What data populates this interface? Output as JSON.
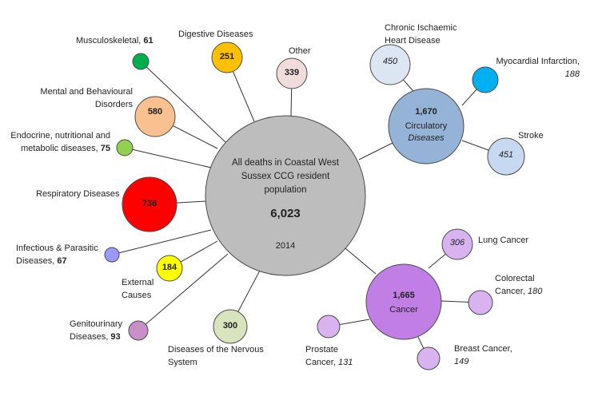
{
  "center": {
    "title": "All deaths in Coastal West Sussex CCG resident population",
    "total": "6,023",
    "year": "2014",
    "color": "#BDBDBD"
  },
  "circulatory": {
    "value": "1,670",
    "label": "Circulatory",
    "label_italic": "Diseases",
    "color": "#95B3D7",
    "children": {
      "chd": {
        "label": "Chronic Ischaemic Heart Disease",
        "value": "450",
        "color": "#DCE6F2"
      },
      "mi": {
        "label": "Myocardial Infarction,",
        "value": "188",
        "color": "#00B0F0"
      },
      "stroke": {
        "label": "Stroke",
        "value": "451",
        "color": "#C6D9F1"
      }
    }
  },
  "cancer": {
    "value": "1,665",
    "label": "Cancer",
    "color": "#C17FE5",
    "children": {
      "lung": {
        "label": "Lung Cancer",
        "value": "306",
        "color": "#D9B3F0"
      },
      "colorectal": {
        "label": "Colorectal Cancer,",
        "value": "180",
        "color": "#D9B3F0"
      },
      "breast": {
        "label": "Breast Cancer,",
        "value": "149",
        "color": "#D9B3F0"
      },
      "prostate": {
        "label": "Prostate Cancer,",
        "value": "131",
        "color": "#D9B3F0"
      }
    }
  },
  "groups": {
    "musculoskeletal": {
      "label": "Musculoskeletal,",
      "value": "61",
      "color": "#00B050"
    },
    "digestive": {
      "label": "Digestive Diseases",
      "value": "251",
      "color": "#FFC000"
    },
    "other": {
      "label": "Other",
      "value": "339",
      "color": "#F2DCDB"
    },
    "mental": {
      "label": "Mental and Behavioural Disorders",
      "value": "580",
      "color": "#FAC090"
    },
    "endocrine": {
      "label": "Endocrine, nutritional and metabolic diseases,",
      "value": "75",
      "color": "#92D050"
    },
    "respiratory": {
      "label": "Respiratory Diseases",
      "value": "738",
      "color": "#FF0000"
    },
    "infectious": {
      "label": "Infectious & Parasitic Diseases,",
      "value": "67",
      "color": "#9999FF"
    },
    "external": {
      "label": "External Causes",
      "value": "184",
      "color": "#FFFF00"
    },
    "genitourinary": {
      "label": "Genitourinary Diseases,",
      "value": "93",
      "color": "#C890C8"
    },
    "nervous": {
      "label": "Diseases of the Nervous System",
      "value": "300",
      "color": "#D7E4BD"
    }
  }
}
